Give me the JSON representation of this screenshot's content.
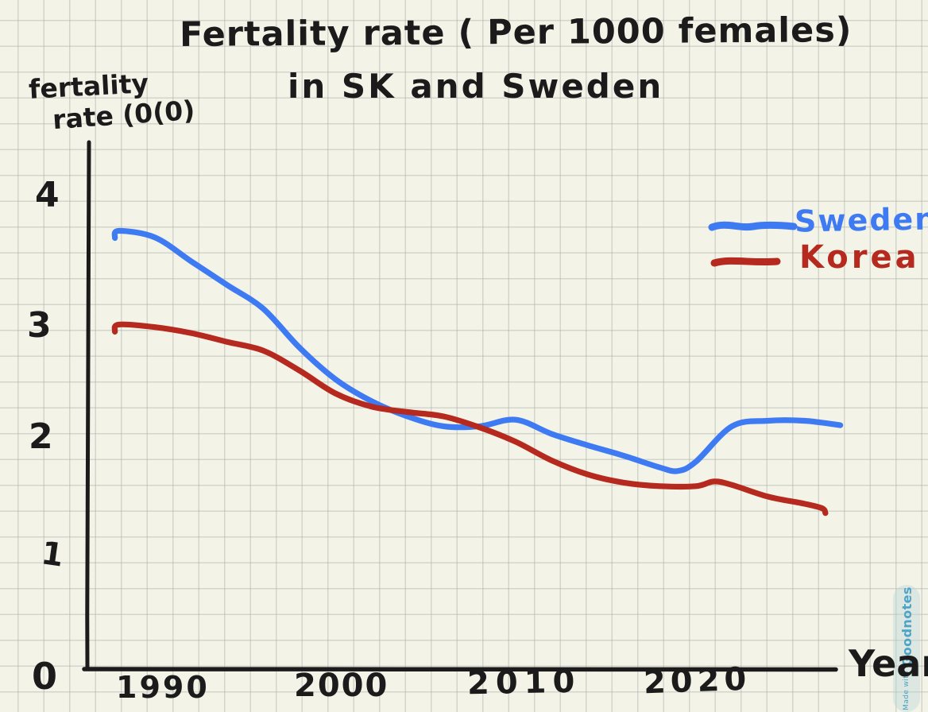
{
  "title": {
    "line1": "Fertality rate ( Per 1000 females)",
    "line2": "in SK and Sweden"
  },
  "y_axis": {
    "label_line1": "fertality",
    "label_line2": "rate (0(0)",
    "ticks": [
      "4",
      "3",
      "2",
      "1",
      "0"
    ]
  },
  "x_axis": {
    "label": "Year",
    "ticks": [
      "1990",
      "2000",
      "2010",
      "2020"
    ]
  },
  "legend": [
    {
      "label": "Sweden",
      "color": "#3e7bf2"
    },
    {
      "label": "Korea",
      "color": "#b5291e"
    }
  ],
  "watermark": {
    "small": "Made with",
    "big": "Goodnotes"
  },
  "colors": {
    "ink": "#1b1b1b",
    "sweden_blue": "#3e7bf2",
    "korea_red": "#b5291e",
    "paper": "#f4f3e8",
    "grid_line": "#d6d9d2",
    "watermark_text": "#4da3c8",
    "watermark_pill": "#e1eeec"
  },
  "chart_data": {
    "type": "line",
    "title": "Fertality rate ( Per 1000 females) in SK and Sweden",
    "xlabel": "Year",
    "ylabel": "fertality rate (0(0)",
    "x_ticks": [
      1990,
      2000,
      2010,
      2020
    ],
    "y_ticks": [
      0,
      1,
      2,
      3,
      4
    ],
    "xlim": [
      1987,
      2029
    ],
    "ylim": [
      0,
      4.5
    ],
    "grid": true,
    "legend_position": "upper right",
    "note": "hand-drawn sketch; values estimated from curves",
    "series": [
      {
        "name": "Sweden",
        "color": "#3e7bf2",
        "pen_hook_start": true,
        "pen_hook_end": false,
        "x": [
          1988,
          1990,
          1992,
          1994,
          1996,
          1998,
          2000,
          2002,
          2004,
          2006,
          2008,
          2010,
          2012,
          2014,
          2016,
          2018,
          2019,
          2020,
          2022,
          2024,
          2026,
          2028
        ],
        "values": [
          3.75,
          3.7,
          3.52,
          3.34,
          3.16,
          2.84,
          2.55,
          2.35,
          2.21,
          2.12,
          2.12,
          2.18,
          2.05,
          1.95,
          1.86,
          1.76,
          1.73,
          1.81,
          2.12,
          2.17,
          2.17,
          2.13
        ]
      },
      {
        "name": "Korea",
        "color": "#b5291e",
        "pen_hook_start": true,
        "pen_hook_end": true,
        "x": [
          1988,
          1990,
          1992,
          1994,
          1996,
          1998,
          2000,
          2002,
          2004,
          2006,
          2008,
          2010,
          2012,
          2014,
          2016,
          2018,
          2020,
          2021,
          2022,
          2024,
          2026,
          2027
        ],
        "values": [
          3.04,
          3.02,
          2.97,
          2.89,
          2.81,
          2.63,
          2.42,
          2.3,
          2.25,
          2.21,
          2.11,
          1.98,
          1.82,
          1.7,
          1.63,
          1.6,
          1.6,
          1.64,
          1.61,
          1.51,
          1.45,
          1.41
        ]
      }
    ]
  }
}
